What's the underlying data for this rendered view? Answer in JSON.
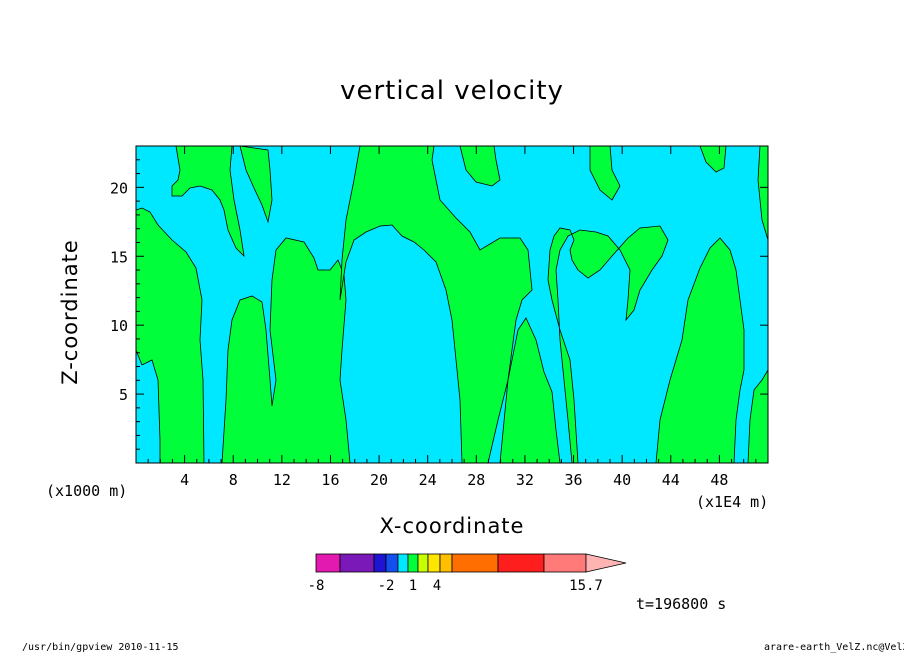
{
  "chart_data": {
    "type": "heatmap",
    "title": "vertical velocity",
    "xlabel": "X-coordinate",
    "ylabel": "Z-coordinate",
    "x_unit_left": "(x1000 m)",
    "x_unit_right": "(x1E4 m)",
    "xlim": [
      0,
      52
    ],
    "ylim": [
      0,
      23
    ],
    "x_ticks": [
      "4",
      "8",
      "12",
      "16",
      "20",
      "24",
      "28",
      "32",
      "36",
      "40",
      "44",
      "48"
    ],
    "y_ticks": [
      "5",
      "10",
      "15",
      "20"
    ],
    "colorbar": {
      "labels": [
        "-8",
        "-2",
        "1",
        "4",
        "15.7"
      ],
      "colors": [
        "#e21ab0",
        "#7a18b8",
        "#1e14d2",
        "#1450f0",
        "#00e8ff",
        "#00ff3a",
        "#c8ff00",
        "#ffe600",
        "#ffbe00",
        "#ff6e00",
        "#ff1e1e",
        "#ff7a78",
        "#ffb4b4"
      ]
    },
    "fill_colors": {
      "negative": "#00e8ff",
      "positive": "#00ff3a"
    }
  },
  "footer": {
    "time": "t=196800 s",
    "left": "/usr/bin/gpview   2010-11-15",
    "right": "arare-earth_VelZ.nc@VelZ"
  }
}
